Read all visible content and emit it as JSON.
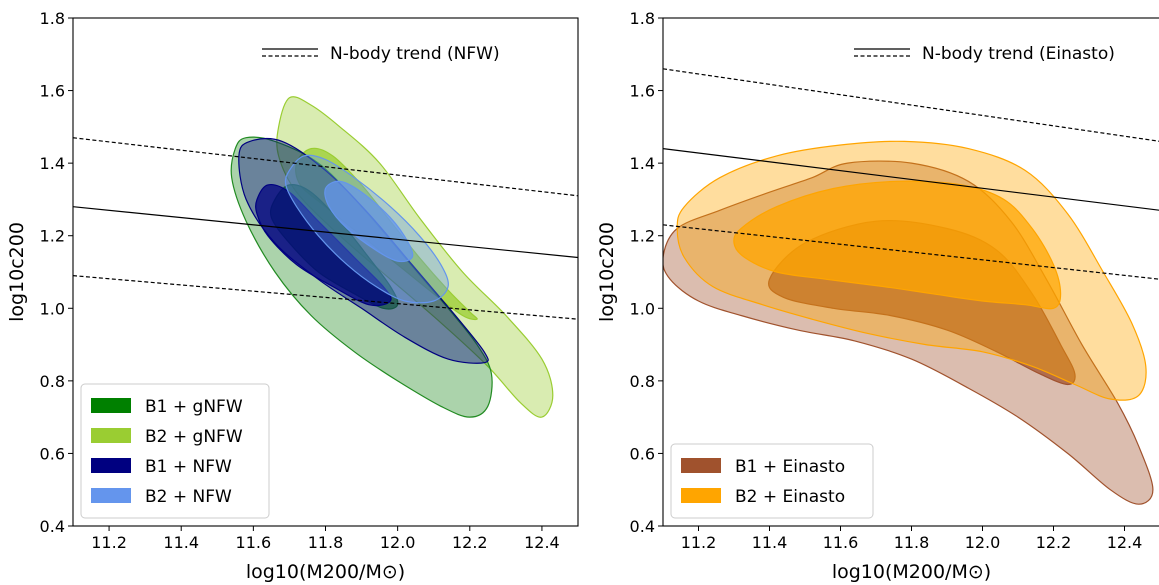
{
  "chart_data": [
    {
      "type": "contour",
      "title": "",
      "xlabel": "log10(M200/M⊙)",
      "ylabel": "log10c200",
      "xlim": [
        11.1,
        12.5
      ],
      "ylim": [
        0.4,
        1.8
      ],
      "xticks": [
        11.2,
        11.4,
        11.6,
        11.8,
        12.0,
        12.2,
        12.4
      ],
      "yticks": [
        0.4,
        0.6,
        0.8,
        1.0,
        1.2,
        1.4,
        1.6,
        1.8
      ],
      "xtick_labels": [
        "11.2",
        "11.4",
        "11.6",
        "11.8",
        "12.0",
        "12.2",
        "12.4"
      ],
      "ytick_labels": [
        "0.4",
        "0.6",
        "0.8",
        "1.0",
        "1.2",
        "1.4",
        "1.6",
        "1.8"
      ],
      "trend_legend": "N-body trend (NFW)",
      "trend_legend_position": "top-right",
      "legend_position": "lower-left",
      "trend_lines": [
        {
          "style": "solid",
          "x": [
            11.1,
            12.5
          ],
          "y": [
            1.28,
            1.14
          ]
        },
        {
          "style": "dashed",
          "x": [
            11.1,
            12.5
          ],
          "y": [
            1.47,
            1.31
          ]
        },
        {
          "style": "dashed",
          "x": [
            11.1,
            12.5
          ],
          "y": [
            1.09,
            0.97
          ]
        }
      ],
      "series": [
        {
          "name": "B2 + gNFW",
          "color": "#9acd32",
          "outer": [
            [
              11.67,
              1.5
            ],
            [
              11.7,
              1.58
            ],
            [
              11.76,
              1.56
            ],
            [
              11.84,
              1.5
            ],
            [
              11.95,
              1.4
            ],
            [
              12.06,
              1.25
            ],
            [
              12.18,
              1.1
            ],
            [
              12.3,
              0.98
            ],
            [
              12.4,
              0.86
            ],
            [
              12.43,
              0.76
            ],
            [
              12.4,
              0.7
            ],
            [
              12.34,
              0.74
            ],
            [
              12.25,
              0.84
            ],
            [
              12.12,
              0.96
            ],
            [
              11.98,
              1.08
            ],
            [
              11.84,
              1.2
            ],
            [
              11.72,
              1.32
            ],
            [
              11.67,
              1.42
            ]
          ],
          "inner": [
            [
              11.72,
              1.4
            ],
            [
              11.76,
              1.44
            ],
            [
              11.82,
              1.42
            ],
            [
              11.9,
              1.34
            ],
            [
              11.98,
              1.24
            ],
            [
              12.06,
              1.14
            ],
            [
              12.14,
              1.05
            ],
            [
              12.2,
              0.99
            ],
            [
              12.22,
              0.97
            ],
            [
              12.18,
              0.98
            ],
            [
              12.1,
              1.04
            ],
            [
              12.0,
              1.12
            ],
            [
              11.9,
              1.2
            ],
            [
              11.8,
              1.28
            ],
            [
              11.73,
              1.34
            ]
          ]
        },
        {
          "name": "B1 + gNFW",
          "color": "#228b22",
          "outer": [
            [
              11.55,
              1.44
            ],
            [
              11.58,
              1.47
            ],
            [
              11.66,
              1.46
            ],
            [
              11.78,
              1.4
            ],
            [
              11.9,
              1.28
            ],
            [
              12.02,
              1.14
            ],
            [
              12.14,
              1.0
            ],
            [
              12.22,
              0.9
            ],
            [
              12.26,
              0.82
            ],
            [
              12.25,
              0.73
            ],
            [
              12.2,
              0.7
            ],
            [
              12.12,
              0.73
            ],
            [
              12.0,
              0.8
            ],
            [
              11.88,
              0.88
            ],
            [
              11.76,
              0.98
            ],
            [
              11.66,
              1.1
            ],
            [
              11.58,
              1.24
            ],
            [
              11.54,
              1.36
            ]
          ],
          "inner": [
            [
              11.66,
              1.3
            ],
            [
              11.7,
              1.34
            ],
            [
              11.76,
              1.32
            ],
            [
              11.84,
              1.24
            ],
            [
              11.92,
              1.14
            ],
            [
              11.98,
              1.06
            ],
            [
              12.0,
              1.01
            ],
            [
              11.96,
              1.0
            ],
            [
              11.88,
              1.04
            ],
            [
              11.78,
              1.1
            ],
            [
              11.7,
              1.18
            ],
            [
              11.65,
              1.25
            ]
          ]
        },
        {
          "name": "B1 + NFW",
          "color": "#000080",
          "outer": [
            [
              11.56,
              1.42
            ],
            [
              11.59,
              1.46
            ],
            [
              11.68,
              1.46
            ],
            [
              11.8,
              1.38
            ],
            [
              11.92,
              1.26
            ],
            [
              12.04,
              1.12
            ],
            [
              12.16,
              0.98
            ],
            [
              12.24,
              0.88
            ],
            [
              12.24,
              0.85
            ],
            [
              12.14,
              0.86
            ],
            [
              12.02,
              0.92
            ],
            [
              11.9,
              1.0
            ],
            [
              11.78,
              1.08
            ],
            [
              11.66,
              1.18
            ],
            [
              11.58,
              1.3
            ]
          ],
          "inner": [
            [
              11.61,
              1.3
            ],
            [
              11.64,
              1.34
            ],
            [
              11.7,
              1.32
            ],
            [
              11.78,
              1.24
            ],
            [
              11.88,
              1.14
            ],
            [
              11.96,
              1.06
            ],
            [
              11.98,
              1.02
            ],
            [
              11.92,
              1.01
            ],
            [
              11.82,
              1.06
            ],
            [
              11.72,
              1.12
            ],
            [
              11.64,
              1.2
            ],
            [
              11.61,
              1.26
            ]
          ]
        },
        {
          "name": "B2 + NFW",
          "color": "#6495ed",
          "outer": [
            [
              11.7,
              1.38
            ],
            [
              11.74,
              1.42
            ],
            [
              11.8,
              1.41
            ],
            [
              11.88,
              1.36
            ],
            [
              11.98,
              1.28
            ],
            [
              12.06,
              1.2
            ],
            [
              12.12,
              1.12
            ],
            [
              12.14,
              1.06
            ],
            [
              12.1,
              1.02
            ],
            [
              12.02,
              1.02
            ],
            [
              11.94,
              1.06
            ],
            [
              11.86,
              1.12
            ],
            [
              11.78,
              1.2
            ],
            [
              11.72,
              1.28
            ],
            [
              11.69,
              1.34
            ]
          ],
          "inner": [
            [
              11.8,
              1.33
            ],
            [
              11.84,
              1.35
            ],
            [
              11.9,
              1.32
            ],
            [
              11.98,
              1.25
            ],
            [
              12.03,
              1.18
            ],
            [
              12.04,
              1.14
            ],
            [
              12.0,
              1.13
            ],
            [
              11.94,
              1.16
            ],
            [
              11.86,
              1.22
            ],
            [
              11.81,
              1.28
            ]
          ]
        }
      ]
    },
    {
      "type": "contour",
      "title": "",
      "xlabel": "log10(M200/M⊙)",
      "ylabel": "log10c200",
      "xlim": [
        11.1,
        12.5
      ],
      "ylim": [
        0.4,
        1.8
      ],
      "xticks": [
        11.2,
        11.4,
        11.6,
        11.8,
        12.0,
        12.2,
        12.4
      ],
      "yticks": [
        0.4,
        0.6,
        0.8,
        1.0,
        1.2,
        1.4,
        1.6,
        1.8
      ],
      "xtick_labels": [
        "11.2",
        "11.4",
        "11.6",
        "11.8",
        "12.0",
        "12.2",
        "12.4"
      ],
      "ytick_labels": [
        "0.4",
        "0.6",
        "0.8",
        "1.0",
        "1.2",
        "1.4",
        "1.6",
        "1.8"
      ],
      "trend_legend": "N-body trend (Einasto)",
      "trend_legend_position": "top-right",
      "legend_position": "lower-left",
      "trend_lines": [
        {
          "style": "solid",
          "x": [
            11.1,
            12.5
          ],
          "y": [
            1.44,
            1.27
          ]
        },
        {
          "style": "dashed",
          "x": [
            11.1,
            12.5
          ],
          "y": [
            1.66,
            1.46
          ]
        },
        {
          "style": "dashed",
          "x": [
            11.1,
            12.5
          ],
          "y": [
            1.23,
            1.08
          ]
        }
      ],
      "series": [
        {
          "name": "B1 + Einasto",
          "color": "#a0522d",
          "outer": [
            [
              11.1,
              1.14
            ],
            [
              11.14,
              1.22
            ],
            [
              11.26,
              1.27
            ],
            [
              11.4,
              1.32
            ],
            [
              11.52,
              1.36
            ],
            [
              11.62,
              1.4
            ],
            [
              11.8,
              1.4
            ],
            [
              11.96,
              1.35
            ],
            [
              12.08,
              1.24
            ],
            [
              12.18,
              1.08
            ],
            [
              12.28,
              0.9
            ],
            [
              12.38,
              0.74
            ],
            [
              12.44,
              0.62
            ],
            [
              12.48,
              0.5
            ],
            [
              12.44,
              0.46
            ],
            [
              12.36,
              0.5
            ],
            [
              12.24,
              0.6
            ],
            [
              12.1,
              0.7
            ],
            [
              11.96,
              0.78
            ],
            [
              11.8,
              0.86
            ],
            [
              11.64,
              0.91
            ],
            [
              11.48,
              0.94
            ],
            [
              11.32,
              0.98
            ],
            [
              11.2,
              1.02
            ],
            [
              11.12,
              1.08
            ]
          ],
          "inner": [
            [
              11.4,
              1.08
            ],
            [
              11.5,
              1.18
            ],
            [
              11.7,
              1.24
            ],
            [
              11.9,
              1.22
            ],
            [
              12.04,
              1.16
            ],
            [
              12.14,
              1.04
            ],
            [
              12.22,
              0.9
            ],
            [
              12.26,
              0.82
            ],
            [
              12.24,
              0.79
            ],
            [
              12.16,
              0.82
            ],
            [
              12.04,
              0.88
            ],
            [
              11.9,
              0.94
            ],
            [
              11.74,
              0.98
            ],
            [
              11.58,
              1.0
            ],
            [
              11.44,
              1.03
            ]
          ]
        },
        {
          "name": "B2 + Einasto",
          "color": "#ffa500",
          "outer": [
            [
              11.16,
              1.28
            ],
            [
              11.26,
              1.36
            ],
            [
              11.42,
              1.42
            ],
            [
              11.6,
              1.45
            ],
            [
              11.78,
              1.46
            ],
            [
              11.96,
              1.44
            ],
            [
              12.12,
              1.38
            ],
            [
              12.24,
              1.26
            ],
            [
              12.34,
              1.1
            ],
            [
              12.42,
              0.96
            ],
            [
              12.46,
              0.84
            ],
            [
              12.44,
              0.76
            ],
            [
              12.36,
              0.75
            ],
            [
              12.26,
              0.79
            ],
            [
              12.14,
              0.84
            ],
            [
              12.0,
              0.88
            ],
            [
              11.84,
              0.9
            ],
            [
              11.68,
              0.93
            ],
            [
              11.52,
              0.97
            ],
            [
              11.38,
              1.01
            ],
            [
              11.24,
              1.06
            ],
            [
              11.16,
              1.14
            ],
            [
              11.14,
              1.22
            ]
          ],
          "inner": [
            [
              11.32,
              1.22
            ],
            [
              11.42,
              1.28
            ],
            [
              11.58,
              1.33
            ],
            [
              11.76,
              1.35
            ],
            [
              11.94,
              1.34
            ],
            [
              12.06,
              1.3
            ],
            [
              12.14,
              1.22
            ],
            [
              12.2,
              1.12
            ],
            [
              12.22,
              1.04
            ],
            [
              12.2,
              1.0
            ],
            [
              12.12,
              1.01
            ],
            [
              12.0,
              1.02
            ],
            [
              11.86,
              1.04
            ],
            [
              11.72,
              1.06
            ],
            [
              11.56,
              1.08
            ],
            [
              11.42,
              1.1
            ],
            [
              11.33,
              1.14
            ],
            [
              11.3,
              1.18
            ]
          ]
        }
      ]
    }
  ],
  "panels": [
    {
      "legend": [
        {
          "label": "B1 + gNFW",
          "color": "#008000"
        },
        {
          "label": "B2 + gNFW",
          "color": "#9acd32"
        },
        {
          "label": "B1 + NFW",
          "color": "#000080"
        },
        {
          "label": "B2 + NFW",
          "color": "#6495ed"
        }
      ]
    },
    {
      "legend": [
        {
          "label": "B1 + Einasto",
          "color": "#a0522d"
        },
        {
          "label": "B2 + Einasto",
          "color": "#ffa500"
        }
      ]
    }
  ]
}
